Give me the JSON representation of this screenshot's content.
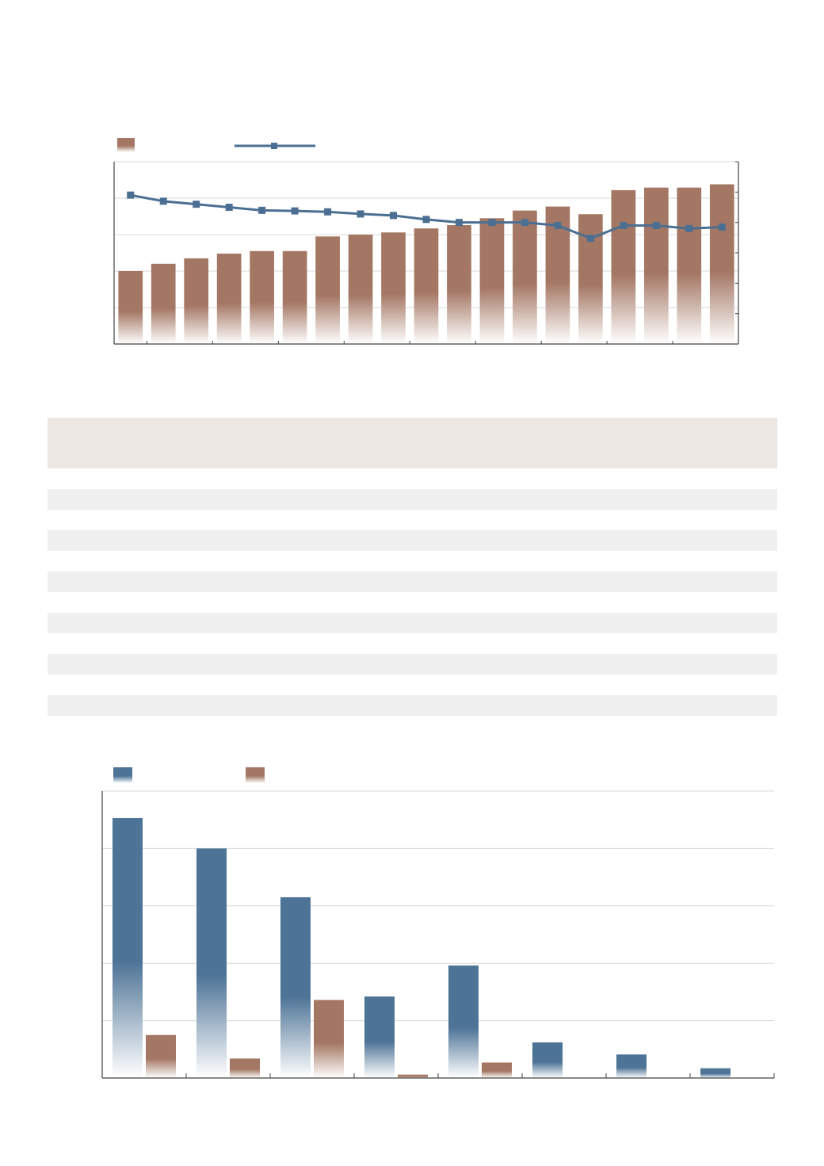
{
  "colors": {
    "bar_brown": "#a47764",
    "line_blue": "#4b6f92",
    "bar_blue": "#4d7396",
    "grid": "#d9d9d9",
    "axis": "#444444",
    "table_header": "#ece7e3",
    "table_stripe": "#f0f0f0"
  },
  "chart_data": [
    {
      "type": "bar",
      "title": "",
      "xlabel": "",
      "ylabel": "",
      "legend_position": "top-left",
      "categories": [
        "",
        "",
        "",
        "",
        "",
        "",
        "",
        "",
        "",
        "",
        "",
        "",
        "",
        "",
        "",
        "",
        "",
        "",
        ""
      ],
      "ylim": [
        0,
        5
      ],
      "y2lim": [
        0,
        6
      ],
      "grid": true,
      "series": [
        {
          "kind": "bar",
          "axis": "left",
          "values": [
            2.0,
            2.2,
            2.35,
            2.48,
            2.55,
            2.55,
            2.95,
            3.0,
            3.06,
            3.17,
            3.26,
            3.45,
            3.66,
            3.77,
            3.56,
            4.22,
            4.29,
            4.29,
            4.38
          ]
        },
        {
          "kind": "line",
          "axis": "right",
          "marker": "square",
          "values": [
            4.9,
            4.7,
            4.6,
            4.5,
            4.4,
            4.38,
            4.35,
            4.28,
            4.23,
            4.1,
            4.0,
            4.0,
            4.0,
            3.9,
            3.48,
            3.9,
            3.9,
            3.8,
            3.85
          ]
        }
      ]
    },
    {
      "type": "bar",
      "title": "",
      "xlabel": "",
      "ylabel": "",
      "legend_position": "top-left",
      "categories": [
        "",
        "",
        "",
        "",
        "",
        "",
        "",
        ""
      ],
      "ylim": [
        0,
        500
      ],
      "grid": true,
      "series": [
        {
          "kind": "bar",
          "values": [
            453,
            400,
            315,
            142,
            196,
            62,
            41,
            17
          ]
        },
        {
          "kind": "bar",
          "values": [
            75,
            34,
            136,
            6,
            27,
            0,
            0,
            0
          ]
        }
      ]
    }
  ],
  "table": {
    "rows": 13
  }
}
